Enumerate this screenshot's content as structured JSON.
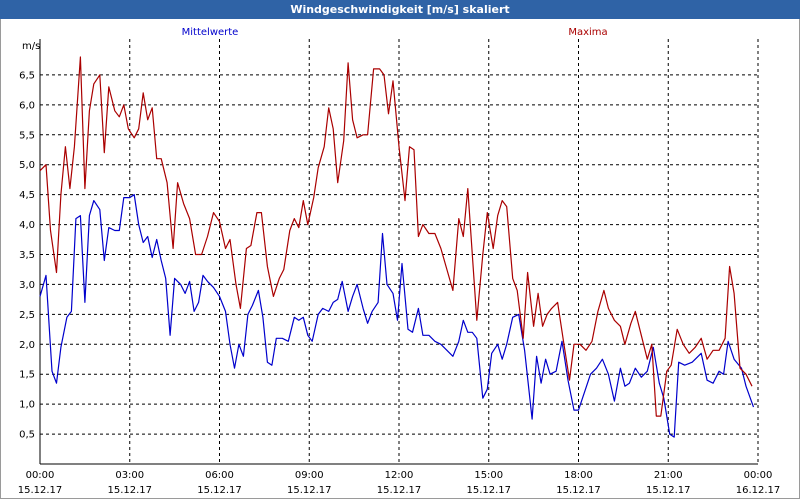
{
  "window": {
    "title": "Windgeschwindigkeit [m/s] skaliert"
  },
  "chart_data": {
    "type": "line",
    "title": "Windgeschwindigkeit [m/s] skaliert",
    "ylabel": "m/s",
    "xlabel": "",
    "ylim": [
      0,
      7.1
    ],
    "xlim": [
      0,
      24
    ],
    "grid": true,
    "yticks": [
      0.5,
      1.0,
      1.5,
      2.0,
      2.5,
      3.0,
      3.5,
      4.0,
      4.5,
      5.0,
      5.5,
      6.0,
      6.5
    ],
    "ytick_labels": [
      "0,5",
      "1,0",
      "1,5",
      "2,0",
      "2,5",
      "3,0",
      "3,5",
      "4,0",
      "4,5",
      "5,0",
      "5,5",
      "6,0",
      "6,5"
    ],
    "xticks": [
      0,
      3,
      6,
      9,
      12,
      15,
      18,
      21,
      24
    ],
    "xtick_labels": [
      [
        "00:00",
        "15.12.17"
      ],
      [
        "03:00",
        "15.12.17"
      ],
      [
        "06:00",
        "15.12.17"
      ],
      [
        "09:00",
        "15.12.17"
      ],
      [
        "12:00",
        "15.12.17"
      ],
      [
        "15:00",
        "15.12.17"
      ],
      [
        "18:00",
        "15.12.17"
      ],
      [
        "21:00",
        "15.12.17"
      ],
      [
        "00:00",
        "16.12.17"
      ]
    ],
    "series": [
      {
        "name": "Mittelwerte",
        "color": "#0000cc",
        "points": [
          [
            0.0,
            2.8
          ],
          [
            0.2,
            3.15
          ],
          [
            0.4,
            1.55
          ],
          [
            0.55,
            1.35
          ],
          [
            0.7,
            1.95
          ],
          [
            0.9,
            2.45
          ],
          [
            1.05,
            2.55
          ],
          [
            1.2,
            4.1
          ],
          [
            1.35,
            4.15
          ],
          [
            1.5,
            2.7
          ],
          [
            1.65,
            4.15
          ],
          [
            1.8,
            4.4
          ],
          [
            2.0,
            4.25
          ],
          [
            2.15,
            3.4
          ],
          [
            2.3,
            3.95
          ],
          [
            2.5,
            3.9
          ],
          [
            2.65,
            3.9
          ],
          [
            2.8,
            4.45
          ],
          [
            3.0,
            4.45
          ],
          [
            3.15,
            4.5
          ],
          [
            3.3,
            4.0
          ],
          [
            3.45,
            3.7
          ],
          [
            3.6,
            3.8
          ],
          [
            3.75,
            3.45
          ],
          [
            3.9,
            3.75
          ],
          [
            4.05,
            3.4
          ],
          [
            4.2,
            3.1
          ],
          [
            4.35,
            2.15
          ],
          [
            4.5,
            3.1
          ],
          [
            4.7,
            3.0
          ],
          [
            4.85,
            2.85
          ],
          [
            5.0,
            3.05
          ],
          [
            5.15,
            2.55
          ],
          [
            5.3,
            2.7
          ],
          [
            5.45,
            3.15
          ],
          [
            5.6,
            3.05
          ],
          [
            5.8,
            2.95
          ],
          [
            6.0,
            2.8
          ],
          [
            6.2,
            2.55
          ],
          [
            6.35,
            2.0
          ],
          [
            6.5,
            1.6
          ],
          [
            6.65,
            2.0
          ],
          [
            6.8,
            1.8
          ],
          [
            6.95,
            2.5
          ],
          [
            7.1,
            2.65
          ],
          [
            7.3,
            2.9
          ],
          [
            7.45,
            2.45
          ],
          [
            7.6,
            1.7
          ],
          [
            7.75,
            1.65
          ],
          [
            7.9,
            2.1
          ],
          [
            8.1,
            2.1
          ],
          [
            8.3,
            2.05
          ],
          [
            8.5,
            2.45
          ],
          [
            8.65,
            2.4
          ],
          [
            8.8,
            2.45
          ],
          [
            8.95,
            2.15
          ],
          [
            9.1,
            2.05
          ],
          [
            9.3,
            2.5
          ],
          [
            9.45,
            2.6
          ],
          [
            9.65,
            2.55
          ],
          [
            9.8,
            2.7
          ],
          [
            9.95,
            2.75
          ],
          [
            10.1,
            3.05
          ],
          [
            10.3,
            2.55
          ],
          [
            10.45,
            2.8
          ],
          [
            10.6,
            3.0
          ],
          [
            10.8,
            2.6
          ],
          [
            10.95,
            2.35
          ],
          [
            11.1,
            2.55
          ],
          [
            11.3,
            2.7
          ],
          [
            11.45,
            3.85
          ],
          [
            11.6,
            3.0
          ],
          [
            11.8,
            2.85
          ],
          [
            11.95,
            2.4
          ],
          [
            12.1,
            3.35
          ],
          [
            12.3,
            2.25
          ],
          [
            12.45,
            2.2
          ],
          [
            12.65,
            2.6
          ],
          [
            12.8,
            2.15
          ],
          [
            13.0,
            2.15
          ],
          [
            13.2,
            2.05
          ],
          [
            13.4,
            2.0
          ],
          [
            13.6,
            1.9
          ],
          [
            13.8,
            1.8
          ],
          [
            14.0,
            2.05
          ],
          [
            14.15,
            2.4
          ],
          [
            14.3,
            2.2
          ],
          [
            14.45,
            2.2
          ],
          [
            14.6,
            2.1
          ],
          [
            14.8,
            1.1
          ],
          [
            14.95,
            1.25
          ],
          [
            15.1,
            1.85
          ],
          [
            15.3,
            2.0
          ],
          [
            15.45,
            1.75
          ],
          [
            15.6,
            2.0
          ],
          [
            15.8,
            2.45
          ],
          [
            16.0,
            2.5
          ],
          [
            16.2,
            1.9
          ],
          [
            16.45,
            0.75
          ],
          [
            16.6,
            1.8
          ],
          [
            16.75,
            1.35
          ],
          [
            16.9,
            1.75
          ],
          [
            17.05,
            1.5
          ],
          [
            17.25,
            1.55
          ],
          [
            17.45,
            2.05
          ],
          [
            17.65,
            1.4
          ],
          [
            17.85,
            0.9
          ],
          [
            18.0,
            0.9
          ],
          [
            18.2,
            1.2
          ],
          [
            18.4,
            1.5
          ],
          [
            18.6,
            1.6
          ],
          [
            18.8,
            1.75
          ],
          [
            19.0,
            1.5
          ],
          [
            19.2,
            1.05
          ],
          [
            19.4,
            1.6
          ],
          [
            19.55,
            1.3
          ],
          [
            19.7,
            1.35
          ],
          [
            19.9,
            1.6
          ],
          [
            20.1,
            1.45
          ],
          [
            20.3,
            1.55
          ],
          [
            20.5,
            1.95
          ],
          [
            20.7,
            1.35
          ],
          [
            20.85,
            1.1
          ],
          [
            21.05,
            0.5
          ],
          [
            21.2,
            0.45
          ],
          [
            21.35,
            1.7
          ],
          [
            21.55,
            1.65
          ],
          [
            21.8,
            1.7
          ],
          [
            22.1,
            1.85
          ],
          [
            22.3,
            1.4
          ],
          [
            22.5,
            1.35
          ],
          [
            22.7,
            1.55
          ],
          [
            22.85,
            1.5
          ],
          [
            23.0,
            2.05
          ],
          [
            23.2,
            1.75
          ],
          [
            23.45,
            1.6
          ],
          [
            23.6,
            1.3
          ],
          [
            23.85,
            0.95
          ]
        ]
      },
      {
        "name": "Maxima",
        "color": "#aa0000",
        "points": [
          [
            0.0,
            4.9
          ],
          [
            0.2,
            5.0
          ],
          [
            0.35,
            3.9
          ],
          [
            0.55,
            3.2
          ],
          [
            0.7,
            4.5
          ],
          [
            0.85,
            5.3
          ],
          [
            1.0,
            4.6
          ],
          [
            1.15,
            5.3
          ],
          [
            1.35,
            6.8
          ],
          [
            1.5,
            4.6
          ],
          [
            1.65,
            5.9
          ],
          [
            1.8,
            6.35
          ],
          [
            2.0,
            6.5
          ],
          [
            2.15,
            5.2
          ],
          [
            2.3,
            6.3
          ],
          [
            2.5,
            5.9
          ],
          [
            2.65,
            5.8
          ],
          [
            2.8,
            6.0
          ],
          [
            2.95,
            5.6
          ],
          [
            3.15,
            5.45
          ],
          [
            3.3,
            5.6
          ],
          [
            3.45,
            6.2
          ],
          [
            3.6,
            5.75
          ],
          [
            3.75,
            5.95
          ],
          [
            3.9,
            5.1
          ],
          [
            4.05,
            5.1
          ],
          [
            4.25,
            4.7
          ],
          [
            4.45,
            3.6
          ],
          [
            4.6,
            4.7
          ],
          [
            4.8,
            4.35
          ],
          [
            5.0,
            4.1
          ],
          [
            5.2,
            3.5
          ],
          [
            5.4,
            3.5
          ],
          [
            5.6,
            3.8
          ],
          [
            5.8,
            4.2
          ],
          [
            6.0,
            4.05
          ],
          [
            6.2,
            3.6
          ],
          [
            6.35,
            3.75
          ],
          [
            6.55,
            3.0
          ],
          [
            6.7,
            2.6
          ],
          [
            6.9,
            3.6
          ],
          [
            7.05,
            3.65
          ],
          [
            7.25,
            4.2
          ],
          [
            7.4,
            4.2
          ],
          [
            7.6,
            3.3
          ],
          [
            7.8,
            2.8
          ],
          [
            8.0,
            3.1
          ],
          [
            8.15,
            3.25
          ],
          [
            8.35,
            3.9
          ],
          [
            8.5,
            4.1
          ],
          [
            8.65,
            3.95
          ],
          [
            8.8,
            4.4
          ],
          [
            8.95,
            4.0
          ],
          [
            9.15,
            4.45
          ],
          [
            9.3,
            4.95
          ],
          [
            9.5,
            5.3
          ],
          [
            9.65,
            5.95
          ],
          [
            9.8,
            5.6
          ],
          [
            9.95,
            4.7
          ],
          [
            10.15,
            5.4
          ],
          [
            10.3,
            6.7
          ],
          [
            10.45,
            5.75
          ],
          [
            10.6,
            5.45
          ],
          [
            10.8,
            5.5
          ],
          [
            10.95,
            5.5
          ],
          [
            11.15,
            6.6
          ],
          [
            11.35,
            6.6
          ],
          [
            11.5,
            6.5
          ],
          [
            11.65,
            5.85
          ],
          [
            11.8,
            6.4
          ],
          [
            12.0,
            5.3
          ],
          [
            12.2,
            4.4
          ],
          [
            12.35,
            5.3
          ],
          [
            12.5,
            5.25
          ],
          [
            12.65,
            3.8
          ],
          [
            12.8,
            4.0
          ],
          [
            13.0,
            3.85
          ],
          [
            13.2,
            3.85
          ],
          [
            13.4,
            3.6
          ],
          [
            13.6,
            3.25
          ],
          [
            13.8,
            2.9
          ],
          [
            14.0,
            4.1
          ],
          [
            14.15,
            3.8
          ],
          [
            14.3,
            4.6
          ],
          [
            14.45,
            3.5
          ],
          [
            14.6,
            2.4
          ],
          [
            14.8,
            3.5
          ],
          [
            14.95,
            4.2
          ],
          [
            15.15,
            3.6
          ],
          [
            15.3,
            4.15
          ],
          [
            15.45,
            4.4
          ],
          [
            15.6,
            4.3
          ],
          [
            15.8,
            3.1
          ],
          [
            15.95,
            2.9
          ],
          [
            16.15,
            2.1
          ],
          [
            16.3,
            3.2
          ],
          [
            16.5,
            2.3
          ],
          [
            16.65,
            2.85
          ],
          [
            16.8,
            2.3
          ],
          [
            16.95,
            2.5
          ],
          [
            17.1,
            2.6
          ],
          [
            17.3,
            2.7
          ],
          [
            17.5,
            2.05
          ],
          [
            17.7,
            1.4
          ],
          [
            17.85,
            2.0
          ],
          [
            18.05,
            2.0
          ],
          [
            18.25,
            1.9
          ],
          [
            18.45,
            2.05
          ],
          [
            18.65,
            2.55
          ],
          [
            18.85,
            2.9
          ],
          [
            19.0,
            2.6
          ],
          [
            19.2,
            2.4
          ],
          [
            19.4,
            2.3
          ],
          [
            19.55,
            2.0
          ],
          [
            19.75,
            2.35
          ],
          [
            19.9,
            2.55
          ],
          [
            20.1,
            2.15
          ],
          [
            20.3,
            1.75
          ],
          [
            20.45,
            2.0
          ],
          [
            20.6,
            0.8
          ],
          [
            20.75,
            0.8
          ],
          [
            20.95,
            1.55
          ],
          [
            21.1,
            1.65
          ],
          [
            21.3,
            2.25
          ],
          [
            21.5,
            2.0
          ],
          [
            21.7,
            1.85
          ],
          [
            21.9,
            1.95
          ],
          [
            22.1,
            2.1
          ],
          [
            22.3,
            1.75
          ],
          [
            22.5,
            1.9
          ],
          [
            22.7,
            1.9
          ],
          [
            22.9,
            2.1
          ],
          [
            23.05,
            3.3
          ],
          [
            23.2,
            2.85
          ],
          [
            23.4,
            1.6
          ],
          [
            23.6,
            1.5
          ],
          [
            23.8,
            1.3
          ]
        ]
      }
    ]
  }
}
